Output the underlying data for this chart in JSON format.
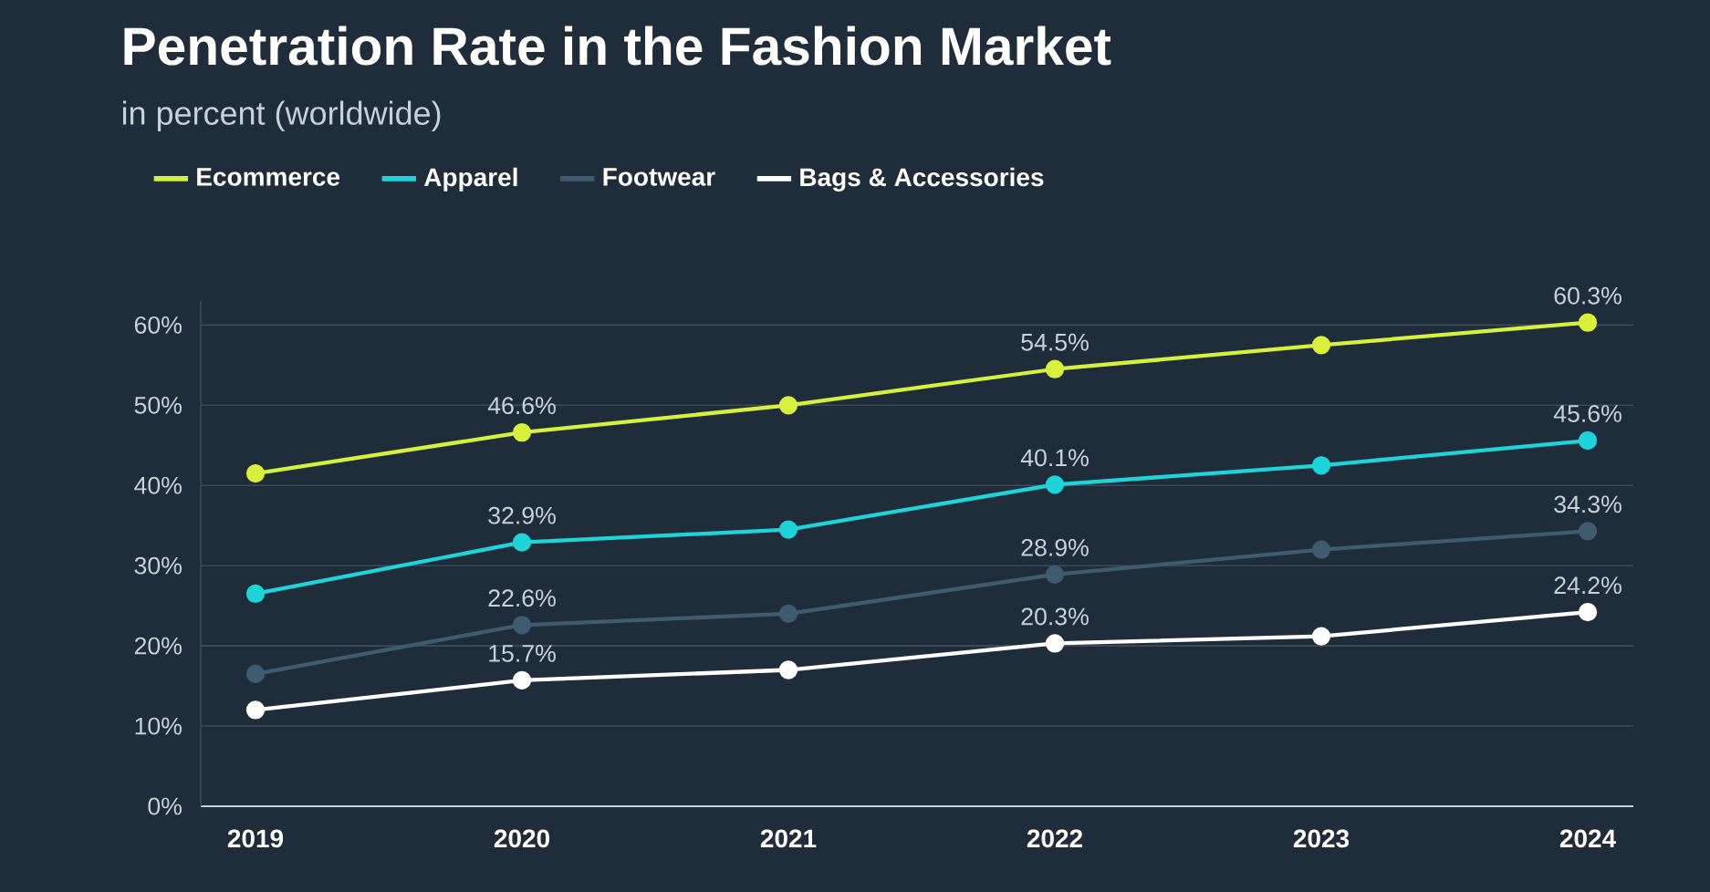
{
  "chart_data": {
    "type": "line",
    "title": "Penetration Rate in the Fashion Market",
    "subtitle": "in percent (worldwide)",
    "categories": [
      "2019",
      "2020",
      "2021",
      "2022",
      "2023",
      "2024"
    ],
    "series": [
      {
        "name": "Ecommerce",
        "color": "#d6f03c",
        "values": [
          41.5,
          46.6,
          50,
          54.5,
          57.5,
          60.3
        ],
        "value_labels": [
          null,
          "46.6%",
          null,
          "54.5%",
          null,
          "60.3%"
        ]
      },
      {
        "name": "Apparel",
        "color": "#1ed4d9",
        "values": [
          26.5,
          32.9,
          34.5,
          40.1,
          42.5,
          45.6
        ],
        "value_labels": [
          null,
          "32.9%",
          null,
          "40.1%",
          null,
          "45.6%"
        ]
      },
      {
        "name": "Footwear",
        "color": "#3f5b70",
        "values": [
          16.5,
          22.6,
          24,
          28.9,
          32,
          34.3
        ],
        "value_labels": [
          null,
          "22.6%",
          null,
          "28.9%",
          null,
          "34.3%"
        ]
      },
      {
        "name": "Bags & Accessories",
        "color": "#ffffff",
        "values": [
          12,
          15.7,
          17,
          20.3,
          21.2,
          24.2
        ],
        "value_labels": [
          null,
          "15.7%",
          null,
          "20.3%",
          null,
          "24.2%"
        ]
      }
    ],
    "ylim": [
      0,
      63
    ],
    "yticks": [
      {
        "value": 0,
        "label": "0%"
      },
      {
        "value": 10,
        "label": "10%"
      },
      {
        "value": 20,
        "label": "20%"
      },
      {
        "value": 30,
        "label": "30%"
      },
      {
        "value": 40,
        "label": "40%"
      },
      {
        "value": 50,
        "label": "50%"
      },
      {
        "value": 60,
        "label": "60%"
      }
    ],
    "grid": "y",
    "legend": "top",
    "marker": "circle"
  }
}
